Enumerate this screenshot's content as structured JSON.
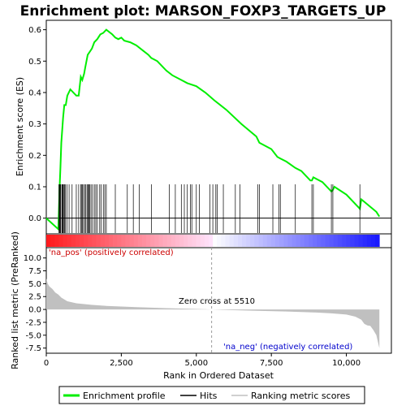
{
  "chart_data": {
    "type": "line",
    "title": "Enrichment plot: MARSON_FOXP3_TARGETS_UP",
    "top_panel": {
      "ylabel": "Enrichment score (ES)",
      "ylim": [
        -0.05,
        0.63
      ],
      "yticks": [
        "0.0",
        "0.1",
        "0.2",
        "0.3",
        "0.4",
        "0.5",
        "0.6"
      ],
      "ytick_values": [
        0.0,
        0.1,
        0.2,
        0.3,
        0.4,
        0.5,
        0.6
      ],
      "series": [
        {
          "name": "Enrichment profile",
          "color": "#00ee00",
          "x": [
            0,
            400,
            420,
            440,
            470,
            500,
            530,
            560,
            600,
            650,
            700,
            800,
            1000,
            1080,
            1150,
            1200,
            1260,
            1300,
            1380,
            1450,
            1520,
            1600,
            1700,
            1800,
            1900,
            2000,
            2200,
            2300,
            2400,
            2500,
            2600,
            2800,
            3000,
            3200,
            3400,
            3500,
            3700,
            4000,
            4200,
            4500,
            4700,
            5000,
            5300,
            5600,
            6000,
            6500,
            7000,
            7100,
            7500,
            7700,
            7800,
            8000,
            8300,
            8500,
            8800,
            8850,
            8900,
            9200,
            9500,
            9550,
            9600,
            10000,
            10450,
            10500,
            11000,
            11100
          ],
          "y": [
            0.0,
            -0.035,
            0.02,
            0.09,
            0.16,
            0.24,
            0.28,
            0.32,
            0.36,
            0.36,
            0.39,
            0.41,
            0.39,
            0.39,
            0.45,
            0.44,
            0.46,
            0.48,
            0.52,
            0.53,
            0.54,
            0.56,
            0.57,
            0.585,
            0.59,
            0.6,
            0.585,
            0.575,
            0.57,
            0.575,
            0.565,
            0.56,
            0.55,
            0.535,
            0.52,
            0.51,
            0.5,
            0.47,
            0.455,
            0.44,
            0.43,
            0.42,
            0.4,
            0.375,
            0.345,
            0.3,
            0.26,
            0.24,
            0.22,
            0.195,
            0.19,
            0.18,
            0.16,
            0.15,
            0.12,
            0.12,
            0.13,
            0.115,
            0.085,
            0.09,
            0.1,
            0.075,
            0.03,
            0.06,
            0.02,
            0.005
          ]
        }
      ],
      "hit_positions": [
        420,
        440,
        460,
        480,
        520,
        540,
        560,
        590,
        610,
        640,
        690,
        760,
        860,
        1000,
        1080,
        1150,
        1170,
        1200,
        1240,
        1280,
        1320,
        1360,
        1390,
        1420,
        1450,
        1490,
        1540,
        1600,
        1650,
        1700,
        1780,
        1830,
        1900,
        1950,
        2000,
        2300,
        2700,
        2900,
        3100,
        3500,
        4100,
        4300,
        4500,
        4600,
        4700,
        4800,
        4850,
        5000,
        5100,
        5450,
        5550,
        5650,
        5700,
        5900,
        6300,
        6450,
        7050,
        7100,
        7550,
        7750,
        7800,
        8300,
        8850,
        8900,
        9500,
        9550,
        10450
      ]
    },
    "bottom_panel": {
      "ylabel": "Ranked list metric (PreRanked)",
      "ylim": [
        -8.5,
        12.0
      ],
      "yticks": [
        "10.0",
        "7.5",
        "5.0",
        "2.5",
        "0.0",
        "-2.5",
        "-5.0",
        "-7.5"
      ],
      "ytick_values": [
        10.0,
        7.5,
        5.0,
        2.5,
        0.0,
        -2.5,
        -5.0,
        -7.5
      ],
      "metric_x": [
        0,
        50,
        100,
        200,
        300,
        400,
        500,
        700,
        1000,
        1500,
        2000,
        3000,
        4000,
        5000,
        5510,
        6000,
        7000,
        8000,
        9000,
        9500,
        10000,
        10300,
        10500,
        10600,
        10700,
        10800,
        10900,
        11000,
        11100
      ],
      "metric_y": [
        6.0,
        5.0,
        4.5,
        4.0,
        3.3,
        2.9,
        2.3,
        1.6,
        1.2,
        0.9,
        0.7,
        0.45,
        0.25,
        0.1,
        0.0,
        -0.1,
        -0.25,
        -0.4,
        -0.6,
        -0.75,
        -1.0,
        -1.4,
        -2.0,
        -2.8,
        -3.1,
        -3.2,
        -4.0,
        -5.0,
        -7.5
      ],
      "zero_cross_label": "Zero cross at 5510",
      "zero_cross_x": 5510,
      "pos_label": "'na_pos' (positively correlated)",
      "neg_label": "'na_neg' (negatively correlated)"
    },
    "xlabel": "Rank in Ordered Dataset",
    "xlim": [
      0,
      11500
    ],
    "xticks": [
      "0",
      "2,500",
      "5,000",
      "7,500",
      "10,000"
    ],
    "xtick_values": [
      0,
      2500,
      5000,
      7500,
      10000
    ],
    "n_genes": 11100,
    "legend": {
      "placement": "bottom",
      "entries": [
        {
          "label": "Enrichment profile",
          "color": "#00ee00"
        },
        {
          "label": "Hits",
          "color": "#000000"
        },
        {
          "label": "Ranking metric scores",
          "color": "#c0c0c0"
        }
      ]
    },
    "colors": {
      "pos": "#ff0000",
      "neg": "#0000ff",
      "pos_label": "#cc0000",
      "neg_label": "#0000cc"
    }
  }
}
